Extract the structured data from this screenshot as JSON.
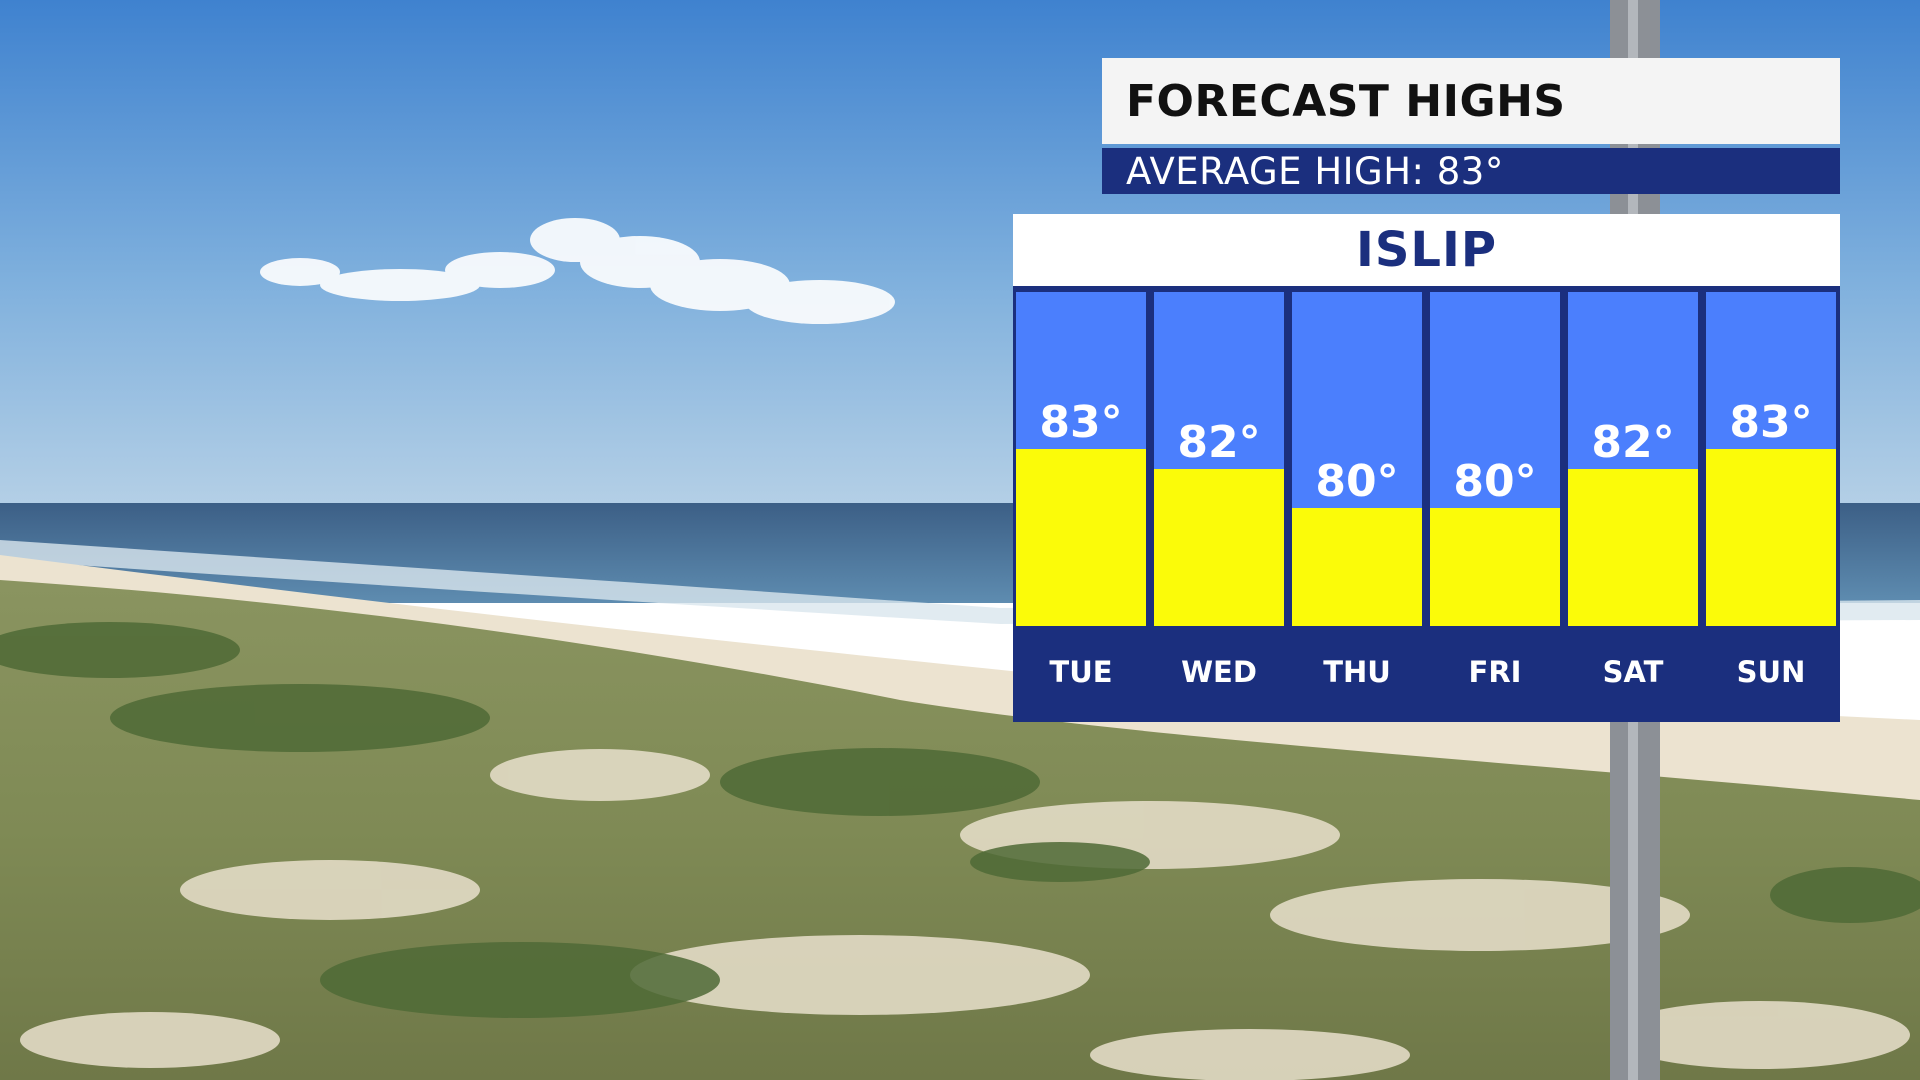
{
  "header": {
    "title": "FORECAST HIGHS",
    "average_high": "AVERAGE HIGH: 83°"
  },
  "colors": {
    "navy": "#1b2f7e",
    "sky_blue": "#4b7ffd",
    "yellow": "#fbfb09"
  },
  "chart_data": {
    "type": "bar",
    "title": "ISLIP",
    "categories": [
      "TUE",
      "WED",
      "THU",
      "FRI",
      "SAT",
      "SUN"
    ],
    "values": [
      83,
      82,
      80,
      80,
      82,
      83
    ],
    "value_labels": [
      "83°",
      "82°",
      "80°",
      "80°",
      "82°",
      "83°"
    ],
    "ylim": [
      74,
      91
    ],
    "grid": false
  }
}
